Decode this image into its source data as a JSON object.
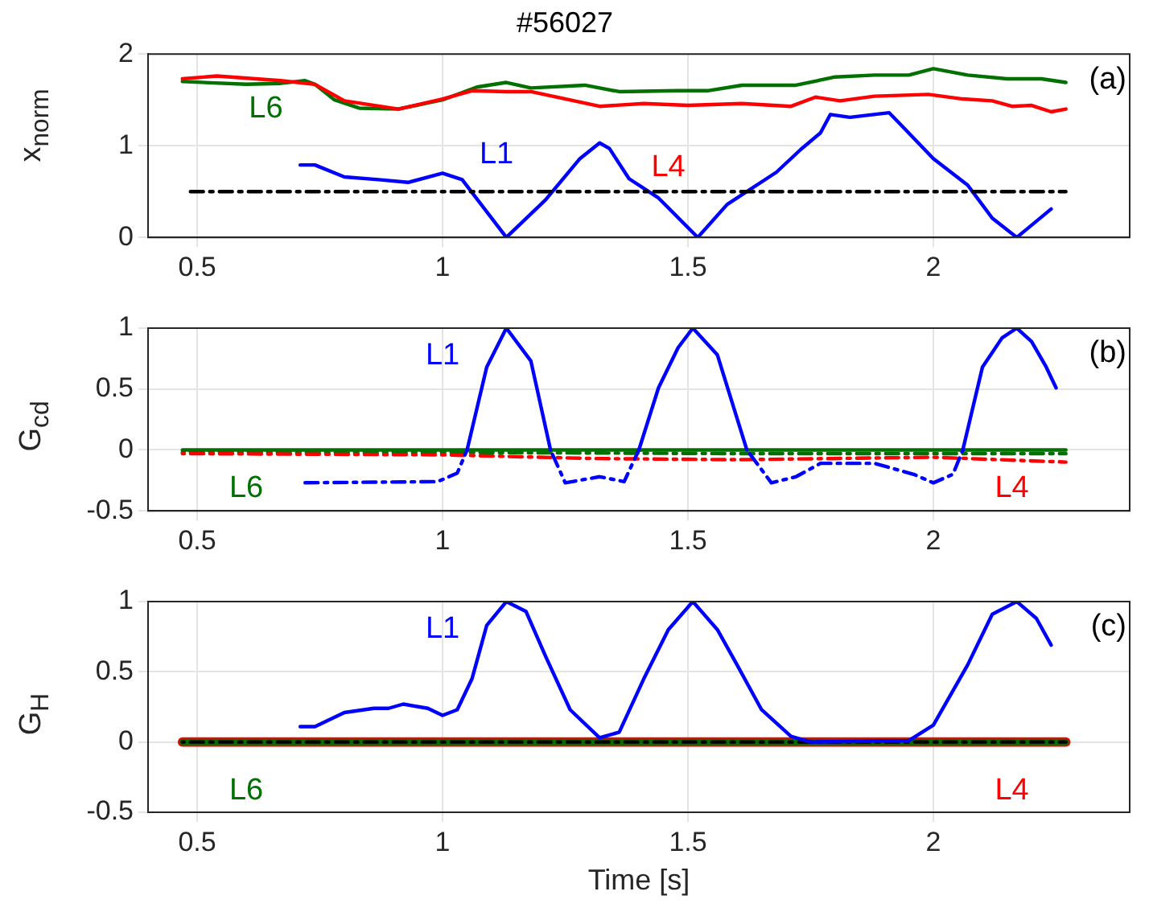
{
  "chart_data": [
    {
      "type": "line",
      "title": "#56027",
      "ylabel": "x$_{norm}$",
      "xlim": [
        0.4,
        2.4
      ],
      "xticks": [
        0.5,
        1,
        1.5,
        2
      ],
      "ylim": [
        0,
        2
      ],
      "yticks": [
        0,
        1,
        2
      ],
      "grid": true,
      "legend": false,
      "annotations": [
        "(a)"
      ],
      "series": [
        {
          "name": "L6",
          "color": "#007000",
          "x": [
            0.47,
            0.6,
            0.67,
            0.72,
            0.74,
            0.78,
            0.83,
            0.91,
            1.0,
            1.07,
            1.13,
            1.18,
            1.29,
            1.36,
            1.48,
            1.54,
            1.61,
            1.72,
            1.8,
            1.88,
            1.95,
            2.0,
            2.07,
            2.15,
            2.22,
            2.27
          ],
          "values": [
            1.7,
            1.67,
            1.68,
            1.71,
            1.67,
            1.5,
            1.41,
            1.4,
            1.5,
            1.64,
            1.69,
            1.63,
            1.66,
            1.59,
            1.6,
            1.6,
            1.66,
            1.66,
            1.75,
            1.77,
            1.77,
            1.84,
            1.77,
            1.73,
            1.73,
            1.69
          ]
        },
        {
          "name": "L4",
          "color": "#ff0000",
          "x": [
            0.47,
            0.54,
            0.67,
            0.74,
            0.8,
            0.91,
            1.0,
            1.06,
            1.13,
            1.18,
            1.32,
            1.41,
            1.5,
            1.61,
            1.71,
            1.76,
            1.81,
            1.88,
            1.99,
            2.06,
            2.12,
            2.16,
            2.2,
            2.24,
            2.27
          ],
          "values": [
            1.73,
            1.76,
            1.71,
            1.67,
            1.49,
            1.4,
            1.51,
            1.6,
            1.59,
            1.59,
            1.43,
            1.46,
            1.44,
            1.46,
            1.43,
            1.53,
            1.49,
            1.54,
            1.56,
            1.51,
            1.49,
            1.43,
            1.44,
            1.37,
            1.4
          ]
        },
        {
          "name": "L1",
          "color": "#0000ff",
          "x": [
            0.71,
            0.74,
            0.8,
            0.87,
            0.93,
            1.0,
            1.04,
            1.13,
            1.21,
            1.28,
            1.32,
            1.34,
            1.38,
            1.44,
            1.52,
            1.58,
            1.68,
            1.73,
            1.77,
            1.79,
            1.83,
            1.91,
            1.93,
            2.0,
            2.07,
            2.12,
            2.17,
            2.24
          ],
          "values": [
            0.79,
            0.79,
            0.66,
            0.63,
            0.6,
            0.7,
            0.63,
            0,
            0.41,
            0.86,
            1.03,
            0.97,
            0.64,
            0.43,
            0,
            0.36,
            0.71,
            0.96,
            1.14,
            1.34,
            1.31,
            1.36,
            1.25,
            0.86,
            0.57,
            0.21,
            0,
            0.31
          ]
        },
        {
          "color": "#000000",
          "line_style": "dashed",
          "x": [
            0.48,
            2.27
          ],
          "values": [
            0.5,
            0.5
          ]
        }
      ]
    },
    {
      "type": "line",
      "ylabel": "G$_{cd}$",
      "xlim": [
        0.4,
        2.4
      ],
      "xticks": [
        0.5,
        1,
        1.5,
        2
      ],
      "ylim": [
        -0.5,
        1
      ],
      "yticks": [
        -0.5,
        0,
        0.5,
        1
      ],
      "grid": true,
      "legend": false,
      "annotations": [
        "(b)"
      ],
      "series": [
        {
          "color": "#007000",
          "line_style": "dashed",
          "x": [
            0.47,
            1.0,
            1.6,
            2.27
          ],
          "values": [
            -0.02,
            -0.02,
            -0.03,
            -0.03
          ]
        },
        {
          "name": "L4",
          "color": "#ff0000",
          "line_style": "dashed",
          "x": [
            0.47,
            1.0,
            1.3,
            1.6,
            2.0,
            2.27
          ],
          "values": [
            -0.03,
            -0.04,
            -0.07,
            -0.08,
            -0.06,
            -0.1
          ]
        },
        {
          "name": "L6",
          "color": "#007000",
          "x": [
            0.47,
            2.27
          ],
          "values": [
            0,
            0
          ]
        },
        {
          "color": "#0000ff",
          "line_style": "dashed",
          "x": [
            0.71,
            0.99,
            1.03,
            1.05,
            1.13,
            1.22,
            1.25,
            1.32,
            1.37,
            1.4,
            1.51,
            1.62,
            1.67,
            1.72,
            1.77,
            1.88,
            1.96,
            2.0,
            2.04,
            2.06
          ],
          "values": [
            -0.27,
            -0.26,
            -0.19,
            0,
            null,
            0,
            -0.27,
            -0.22,
            -0.26,
            0,
            null,
            0,
            -0.27,
            -0.22,
            -0.11,
            -0.11,
            -0.2,
            -0.27,
            -0.2,
            0
          ]
        },
        {
          "name": "L1",
          "color": "#0000ff",
          "x": [
            1.05,
            1.09,
            1.13,
            1.18,
            1.22,
            1.31,
            1.4,
            1.44,
            1.48,
            1.51,
            1.56,
            1.62,
            1.84,
            2.06,
            2.1,
            2.14,
            2.17,
            2.2,
            2.23,
            2.25
          ],
          "values": [
            0,
            0.68,
            1.0,
            0.73,
            0,
            null,
            0,
            0.51,
            0.84,
            1.0,
            0.78,
            0,
            null,
            0,
            0.68,
            0.92,
            1.0,
            0.89,
            0.68,
            0.51
          ]
        }
      ]
    },
    {
      "type": "line",
      "ylabel": "G$_{H}$",
      "xlabel": "Time [s]",
      "xlim": [
        0.4,
        2.4
      ],
      "xticks": [
        0.5,
        1,
        1.5,
        2
      ],
      "ylim": [
        -0.5,
        1
      ],
      "yticks": [
        -0.5,
        0,
        0.5,
        1
      ],
      "grid": true,
      "legend": false,
      "annotations": [
        "(c)"
      ],
      "series": [
        {
          "name": "L4",
          "color": "#ff0000",
          "x": [
            0.47,
            2.27
          ],
          "values": [
            0,
            0
          ]
        },
        {
          "name": "L6",
          "color": "#007000",
          "x": [
            0.47,
            2.27
          ],
          "values": [
            0,
            0
          ]
        },
        {
          "color": "#000000",
          "line_style": "dashed",
          "x": [
            0.47,
            2.27
          ],
          "values": [
            0,
            0
          ]
        },
        {
          "name": "L1",
          "color": "#0000ff",
          "x": [
            0.71,
            0.74,
            0.8,
            0.86,
            0.89,
            0.92,
            0.97,
            1.0,
            1.03,
            1.06,
            1.09,
            1.13,
            1.17,
            1.21,
            1.26,
            1.32,
            1.36,
            1.41,
            1.46,
            1.51,
            1.56,
            1.6,
            1.65,
            1.71,
            1.75,
            1.95,
            2.0,
            2.07,
            2.12,
            2.17,
            2.21,
            2.24
          ],
          "values": [
            0.11,
            0.11,
            0.21,
            0.24,
            0.24,
            0.27,
            0.24,
            0.19,
            0.23,
            0.45,
            0.83,
            1.0,
            0.93,
            0.61,
            0.23,
            0.03,
            0.07,
            0.45,
            0.8,
            1.0,
            0.8,
            0.55,
            0.23,
            0.04,
            0,
            0.01,
            0.12,
            0.55,
            0.91,
            1.0,
            0.88,
            0.69
          ]
        }
      ]
    }
  ]
}
